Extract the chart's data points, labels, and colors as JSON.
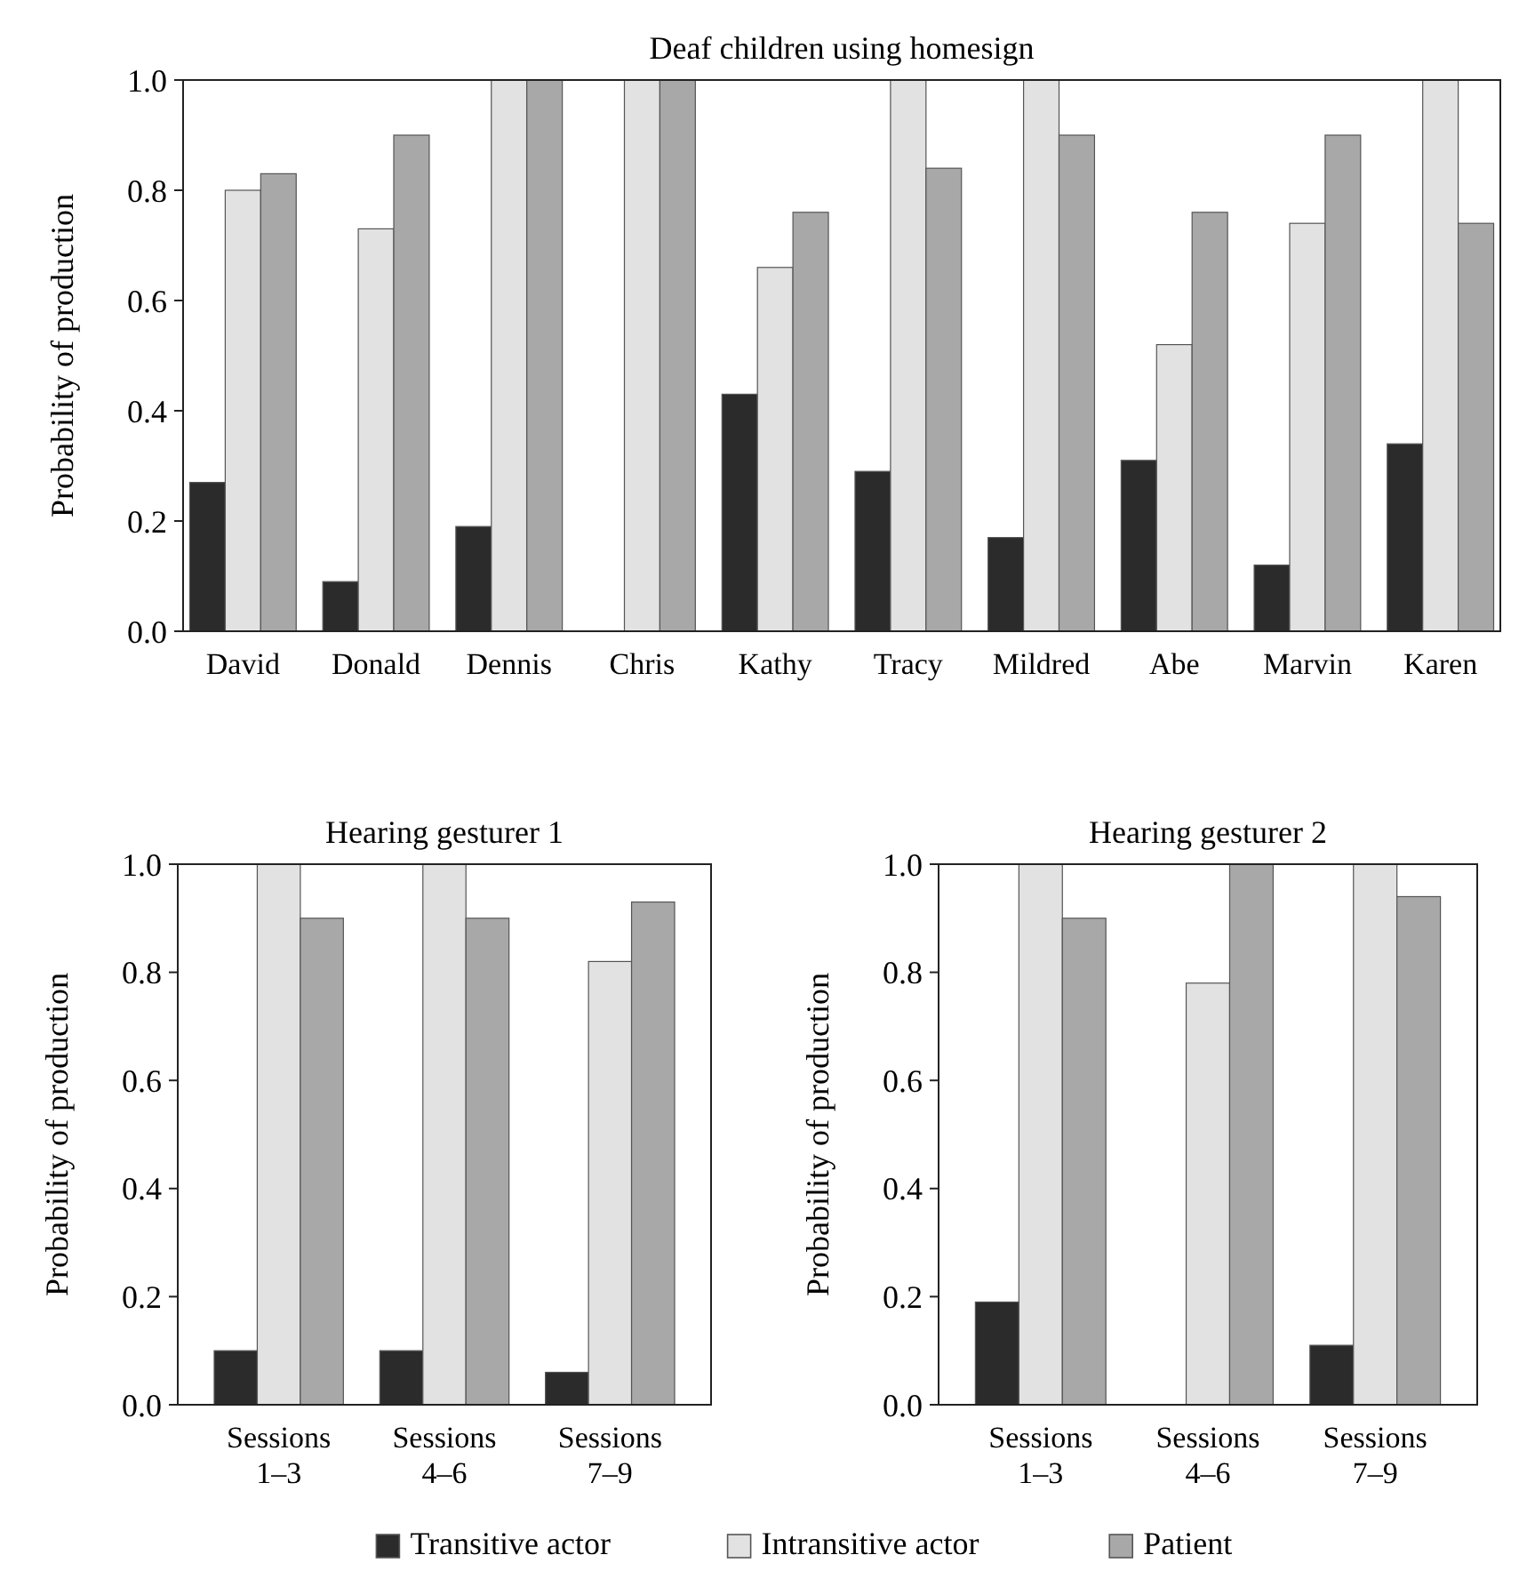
{
  "chart_data": [
    {
      "type": "bar",
      "title": "Deaf children using homesign",
      "ylabel": "Probability of production",
      "legend": "bottom",
      "categories": [
        "David",
        "Donald",
        "Dennis",
        "Chris",
        "Kathy",
        "Tracy",
        "Mildred",
        "Abe",
        "Marvin",
        "Karen"
      ],
      "ylim": [
        0,
        1
      ],
      "yticks": [
        {
          "value": 0,
          "label": "0.0"
        },
        {
          "value": 0.2,
          "label": "0.2"
        },
        {
          "value": 0.4,
          "label": "0.4"
        },
        {
          "value": 0.6,
          "label": "0.6"
        },
        {
          "value": 0.8,
          "label": "0.8"
        },
        {
          "value": 1,
          "label": "1.0"
        }
      ],
      "series": [
        {
          "name": "Transitive actor",
          "color": "#2b2b2b",
          "values": [
            0.27,
            0.09,
            0.19,
            0,
            0.43,
            0.29,
            0.17,
            0.31,
            0.12,
            0.34
          ]
        },
        {
          "name": "Intransitive actor",
          "color": "#e2e2e2",
          "values": [
            0.8,
            0.73,
            1,
            1,
            0.66,
            1,
            1,
            0.52,
            0.74,
            1
          ]
        },
        {
          "name": "Patient",
          "color": "#a8a8a8",
          "values": [
            0.83,
            0.9,
            1,
            1,
            0.76,
            0.84,
            0.9,
            0.76,
            0.9,
            0.74
          ]
        }
      ]
    },
    {
      "type": "bar",
      "title": "Hearing gesturer 1",
      "ylabel": "Probability of production",
      "categories": [
        "Sessions\n1–3",
        "Sessions\n4–6",
        "Sessions\n7–9"
      ],
      "ylim": [
        0,
        1
      ],
      "yticks": [
        {
          "value": 0,
          "label": "0.0"
        },
        {
          "value": 0.2,
          "label": "0.2"
        },
        {
          "value": 0.4,
          "label": "0.4"
        },
        {
          "value": 0.6,
          "label": "0.6"
        },
        {
          "value": 0.8,
          "label": "0.8"
        },
        {
          "value": 1,
          "label": "1.0"
        }
      ],
      "series": [
        {
          "color": "#2b2b2b",
          "values": [
            0.1,
            0.1,
            0.06
          ]
        },
        {
          "color": "#e2e2e2",
          "values": [
            1,
            1,
            0.82
          ]
        },
        {
          "color": "#a8a8a8",
          "values": [
            0.9,
            0.9,
            0.93
          ]
        }
      ]
    },
    {
      "type": "bar",
      "title": "Hearing gesturer 2",
      "ylabel": "Probability of production",
      "categories": [
        "Sessions\n1–3",
        "Sessions\n4–6",
        "Sessions\n7–9"
      ],
      "ylim": [
        0,
        1
      ],
      "yticks": [
        {
          "value": 0,
          "label": "0.0"
        },
        {
          "value": 0.2,
          "label": "0.2"
        },
        {
          "value": 0.4,
          "label": "0.4"
        },
        {
          "value": 0.6,
          "label": "0.6"
        },
        {
          "value": 0.8,
          "label": "0.8"
        },
        {
          "value": 1,
          "label": "1.0"
        }
      ],
      "series": [
        {
          "color": "#2b2b2b",
          "values": [
            0.19,
            0,
            0.11
          ]
        },
        {
          "color": "#e2e2e2",
          "values": [
            1,
            0.78,
            1
          ]
        },
        {
          "color": "#a8a8a8",
          "values": [
            0.9,
            1,
            0.94
          ]
        }
      ]
    }
  ]
}
